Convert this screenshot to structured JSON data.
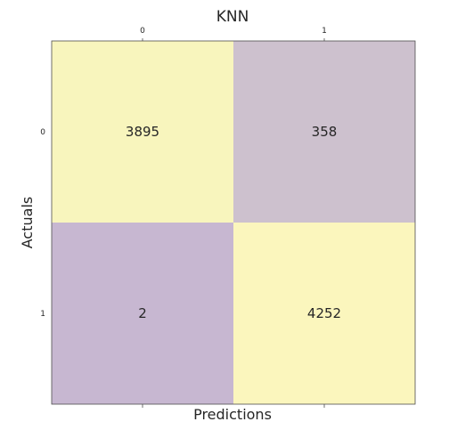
{
  "chart_data": {
    "type": "heatmap",
    "title": "KNN",
    "xlabel": "Predictions",
    "ylabel": "Actuals",
    "x_categories": [
      "0",
      "1"
    ],
    "y_categories": [
      "0",
      "1"
    ],
    "values": [
      [
        3895,
        358
      ],
      [
        2,
        4252
      ]
    ],
    "grid": false,
    "colorscale": [
      "#c7b7d1",
      "#eaf3bd",
      "#fbf6bd"
    ]
  }
}
